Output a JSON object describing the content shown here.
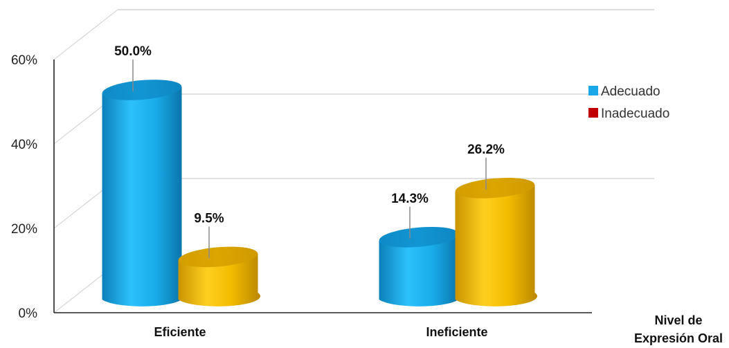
{
  "chart_data": {
    "type": "bar",
    "variant": "3d-cylinder",
    "categories": [
      "Eficiente",
      "Ineficiente"
    ],
    "series": [
      {
        "name": "Adecuado",
        "values": [
          50.0,
          14.3
        ],
        "color": "#1AA8E8"
      },
      {
        "name": "Inadecuado",
        "values": [
          9.5,
          26.2
        ],
        "color": "#E8B400",
        "legend_color": "#C00000"
      }
    ],
    "data_labels": [
      [
        "50.0%",
        "14.3%"
      ],
      [
        "9.5%",
        "26.2%"
      ]
    ],
    "ylim": [
      0,
      60
    ],
    "yticks": [
      0,
      20,
      40,
      60
    ],
    "ytick_labels": [
      "0%",
      "20%",
      "40%",
      "60%"
    ],
    "xlabel_lines": [
      "Nivel de",
      "Expresión Oral"
    ],
    "ylabel": "",
    "title": "",
    "grid": true,
    "legend_position": "right"
  }
}
